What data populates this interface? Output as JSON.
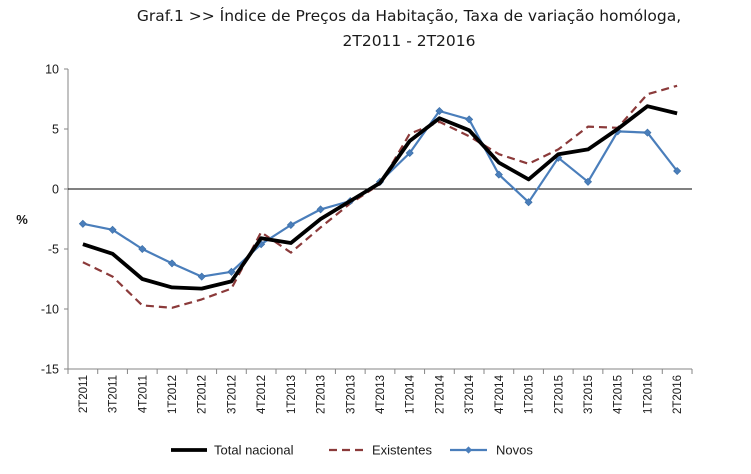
{
  "chart_data": {
    "type": "line",
    "title_line1": "Graf.1  >> Índice de Preços da Habitação, Taxa de variação homóloga,",
    "title_line2": "2T2011 - 2T2016",
    "ylabel": "%",
    "xlabel": "",
    "ylim": [
      -15,
      10
    ],
    "yticks": [
      10,
      5,
      0,
      -5,
      -10,
      -15
    ],
    "categories": [
      "2T2011",
      "3T2011",
      "4T2011",
      "1T2012",
      "2T2012",
      "3T2012",
      "4T2012",
      "1T2013",
      "2T2013",
      "3T2013",
      "4T2013",
      "1T2014",
      "2T2014",
      "3T2014",
      "4T2014",
      "1T2015",
      "2T2015",
      "3T2015",
      "4T2015",
      "1T2016",
      "2T2016"
    ],
    "series": [
      {
        "name": "Total nacional",
        "color": "#000000",
        "style": "solid-thick",
        "values": [
          -4.6,
          -5.4,
          -7.5,
          -8.2,
          -8.3,
          -7.7,
          -4.1,
          -4.5,
          -2.5,
          -1.0,
          0.5,
          4.0,
          5.9,
          4.9,
          2.2,
          0.8,
          2.9,
          3.3,
          5.0,
          6.9,
          6.3
        ]
      },
      {
        "name": "Existentes",
        "color": "#8b3a3a",
        "style": "dashed",
        "values": [
          -6.1,
          -7.3,
          -9.7,
          -9.9,
          -9.2,
          -8.3,
          -3.6,
          -5.3,
          -3.2,
          -1.2,
          0.4,
          4.6,
          5.6,
          4.4,
          2.9,
          2.1,
          3.3,
          5.2,
          5.1,
          7.9,
          8.6
        ]
      },
      {
        "name": "Novos",
        "color": "#4a7ebb",
        "style": "solid-markers",
        "values": [
          -2.9,
          -3.4,
          -5.0,
          -6.2,
          -7.3,
          -6.9,
          -4.6,
          -3.0,
          -1.7,
          -1.0,
          0.6,
          3.0,
          6.5,
          5.8,
          1.2,
          -1.1,
          2.6,
          0.6,
          4.8,
          4.7,
          1.5
        ]
      }
    ]
  }
}
